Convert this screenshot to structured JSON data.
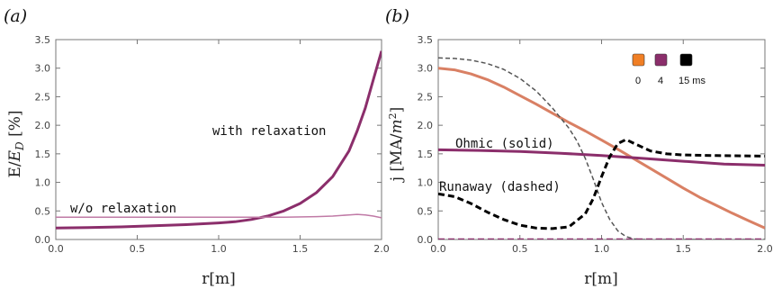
{
  "chart_data": [
    {
      "panel": "(a)",
      "type": "line",
      "ylabel": "E/E_D [%]",
      "xlabel": "r[m]",
      "xlim": [
        0,
        2.0
      ],
      "ylim": [
        0,
        3.5
      ],
      "xticks": [
        "0.0",
        "0.5",
        "1.0",
        "1.5",
        "2.0"
      ],
      "yticks": [
        "0.0",
        "0.5",
        "1.0",
        "1.5",
        "2.0",
        "2.5",
        "3.0",
        "3.5"
      ],
      "annotations": [
        {
          "text": "with relaxation",
          "series": 0
        },
        {
          "text": "w/o relaxation",
          "series": 1
        }
      ],
      "series": [
        {
          "color": "#8b2e6b",
          "width": 3,
          "x": [
            0.0,
            0.2,
            0.4,
            0.6,
            0.8,
            1.0,
            1.1,
            1.2,
            1.3,
            1.4,
            1.5,
            1.6,
            1.7,
            1.8,
            1.85,
            1.9,
            1.95,
            2.0
          ],
          "y": [
            0.2,
            0.21,
            0.22,
            0.24,
            0.26,
            0.29,
            0.31,
            0.35,
            0.41,
            0.5,
            0.63,
            0.82,
            1.1,
            1.55,
            1.9,
            2.3,
            2.8,
            3.3
          ]
        },
        {
          "color": "#c07aa6",
          "width": 1.5,
          "x": [
            0.0,
            0.2,
            0.4,
            0.6,
            0.8,
            1.0,
            1.2,
            1.4,
            1.6,
            1.7,
            1.8,
            1.85,
            1.9,
            1.95,
            2.0
          ],
          "y": [
            0.39,
            0.39,
            0.39,
            0.39,
            0.39,
            0.39,
            0.39,
            0.39,
            0.4,
            0.41,
            0.43,
            0.44,
            0.43,
            0.41,
            0.38
          ]
        }
      ]
    },
    {
      "panel": "(b)",
      "type": "line",
      "ylabel": "j [MA/m²]",
      "xlabel": "r[m]",
      "xlim": [
        0,
        2.0
      ],
      "ylim": [
        0,
        3.5
      ],
      "xticks": [
        "0.0",
        "0.5",
        "1.0",
        "1.5",
        "2.0"
      ],
      "yticks": [
        "0.0",
        "0.5",
        "1.0",
        "1.5",
        "2.0",
        "2.5",
        "3.0",
        "3.5"
      ],
      "annotations": [
        {
          "text": "Ohmic (solid)"
        },
        {
          "text": "Runaway (dashed)"
        }
      ],
      "legend": {
        "placement": "top-right",
        "labels": [
          "0",
          "4",
          "15 ms"
        ],
        "colors": [
          "#f07f25",
          "#8b2e6b",
          "#000000"
        ]
      },
      "series": [
        {
          "color": "#d98064",
          "width": 3,
          "dash": "solid",
          "x": [
            0.0,
            0.1,
            0.2,
            0.3,
            0.4,
            0.5,
            0.6,
            0.7,
            0.8,
            0.9,
            1.0,
            1.1,
            1.2,
            1.3,
            1.4,
            1.5,
            1.6,
            1.7,
            1.8,
            1.9,
            2.0
          ],
          "y": [
            3.0,
            2.97,
            2.9,
            2.8,
            2.67,
            2.52,
            2.37,
            2.21,
            2.05,
            1.9,
            1.74,
            1.58,
            1.41,
            1.24,
            1.07,
            0.9,
            0.74,
            0.6,
            0.46,
            0.33,
            0.2
          ]
        },
        {
          "color": "#8b2e6b",
          "width": 3,
          "dash": "solid",
          "x": [
            0.0,
            0.25,
            0.5,
            0.75,
            1.0,
            1.25,
            1.5,
            1.75,
            2.0
          ],
          "y": [
            1.57,
            1.56,
            1.54,
            1.51,
            1.47,
            1.42,
            1.37,
            1.32,
            1.3
          ]
        },
        {
          "color": "#555555",
          "width": 1.5,
          "dash": "dashed",
          "x": [
            0.0,
            0.1,
            0.2,
            0.3,
            0.4,
            0.5,
            0.6,
            0.7,
            0.8,
            0.85,
            0.9,
            0.95,
            1.0,
            1.05,
            1.1,
            1.15,
            1.2,
            1.25,
            1.3,
            2.0
          ],
          "y": [
            3.18,
            3.17,
            3.14,
            3.08,
            2.98,
            2.82,
            2.6,
            2.3,
            1.95,
            1.72,
            1.42,
            1.05,
            0.65,
            0.35,
            0.15,
            0.05,
            0.01,
            0.0,
            0.0,
            0.0
          ]
        },
        {
          "color": "#000000",
          "width": 3,
          "dash": "dashed",
          "x": [
            0.0,
            0.1,
            0.2,
            0.3,
            0.4,
            0.5,
            0.6,
            0.7,
            0.8,
            0.9,
            0.95,
            1.0,
            1.05,
            1.1,
            1.15,
            1.2,
            1.3,
            1.4,
            1.5,
            1.7,
            2.0
          ],
          "y": [
            0.8,
            0.75,
            0.63,
            0.48,
            0.35,
            0.25,
            0.2,
            0.19,
            0.22,
            0.45,
            0.72,
            1.1,
            1.45,
            1.68,
            1.75,
            1.68,
            1.55,
            1.5,
            1.48,
            1.47,
            1.46
          ]
        },
        {
          "color": "#8b2e6b",
          "width": 2.5,
          "dash": "dashed",
          "x": [
            0.0,
            2.0
          ],
          "y": [
            0.0,
            0.0
          ]
        }
      ]
    }
  ]
}
